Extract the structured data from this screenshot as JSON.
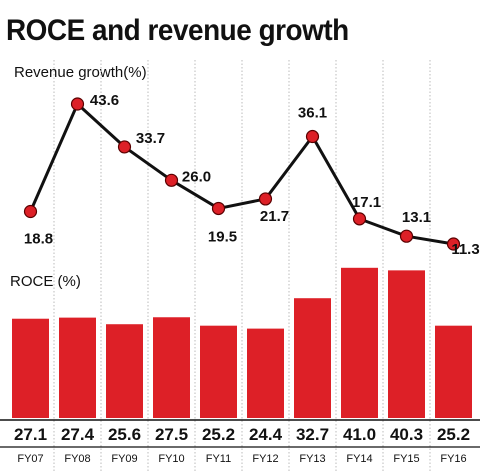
{
  "title": "ROCE and revenue growth",
  "colors": {
    "bar": "#dd2027",
    "line": "#111111",
    "marker": "#dd2027",
    "grid": "#bbbbbb"
  },
  "chart_data": [
    {
      "type": "line",
      "ylabel": "Revenue growth(%)",
      "categories": [
        "FY07",
        "FY08",
        "FY09",
        "FY10",
        "FY11",
        "FY12",
        "FY13",
        "FY14",
        "FY15",
        "FY16"
      ],
      "values": [
        18.8,
        43.6,
        33.7,
        26.0,
        19.5,
        21.7,
        36.1,
        17.1,
        13.1,
        11.3
      ],
      "labels": [
        "18.8",
        "43.6",
        "33.7",
        "26.0",
        "19.5",
        "21.7",
        "36.1",
        "17.1",
        "13.1",
        "11.3"
      ],
      "grid": true
    },
    {
      "type": "bar",
      "ylabel": "ROCE (%)",
      "categories": [
        "FY07",
        "FY08",
        "FY09",
        "FY10",
        "FY11",
        "FY12",
        "FY13",
        "FY14",
        "FY15",
        "FY16"
      ],
      "values": [
        27.1,
        27.4,
        25.6,
        27.5,
        25.2,
        24.4,
        32.7,
        41.0,
        40.3,
        25.2
      ],
      "labels": [
        "27.1",
        "27.4",
        "25.6",
        "27.5",
        "25.2",
        "24.4",
        "32.7",
        "41.0",
        "40.3",
        "25.2"
      ],
      "grid": true
    }
  ]
}
